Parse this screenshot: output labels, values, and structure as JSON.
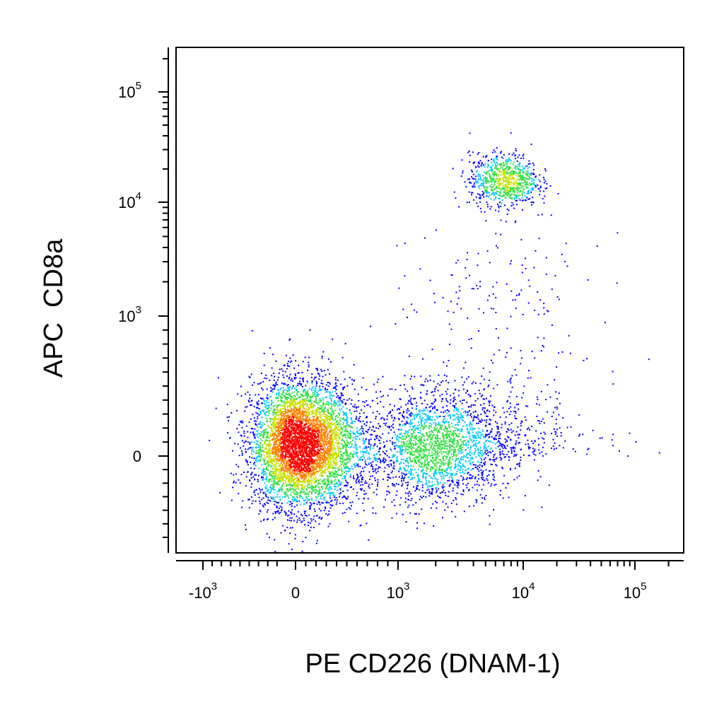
{
  "chart_data": {
    "type": "scatter",
    "style": "density-colored dot plot (flow cytometry)",
    "xlabel": "PE CD226 (DNAM-1)",
    "ylabel": "APC  CD8a",
    "x_scale": "biexponential",
    "y_scale": "biexponential",
    "xlim": [
      -1800,
      200000
    ],
    "ylim": [
      -600,
      200000
    ],
    "x_ticks": [
      {
        "base": "-10",
        "exp": "3",
        "value": -1000
      },
      {
        "base": "0",
        "exp": "",
        "value": 0
      },
      {
        "base": "10",
        "exp": "3",
        "value": 1000
      },
      {
        "base": "10",
        "exp": "4",
        "value": 10000
      },
      {
        "base": "10",
        "exp": "5",
        "value": 100000
      }
    ],
    "y_ticks": [
      {
        "base": "0",
        "exp": "",
        "value": 0
      },
      {
        "base": "10",
        "exp": "3",
        "value": 1000
      },
      {
        "base": "10",
        "exp": "4",
        "value": 10000
      },
      {
        "base": "10",
        "exp": "5",
        "value": 100000
      }
    ],
    "density_colors": [
      "#0000ff",
      "#00c8ff",
      "#30e040",
      "#c8e000",
      "#ff8000",
      "#ff0000"
    ],
    "populations": [
      {
        "x_center": 40,
        "y_center": 80,
        "x_spread": 260,
        "y_spread": 230,
        "relative_size": 0.55
      },
      {
        "x_center": 1800,
        "y_center": 60,
        "x_spread": 0.32,
        "y_spread": 200,
        "relative_size": 0.25
      },
      {
        "x_center": 7000,
        "y_center": 16000,
        "x_spread": 0.14,
        "y_spread": 0.12,
        "relative_size": 0.09
      },
      {
        "x_center": 6000,
        "y_center": 300,
        "x_spread": 0.45,
        "y_spread": 0.6,
        "relative_size": 0.06
      }
    ],
    "grid": false,
    "legend": "none"
  }
}
